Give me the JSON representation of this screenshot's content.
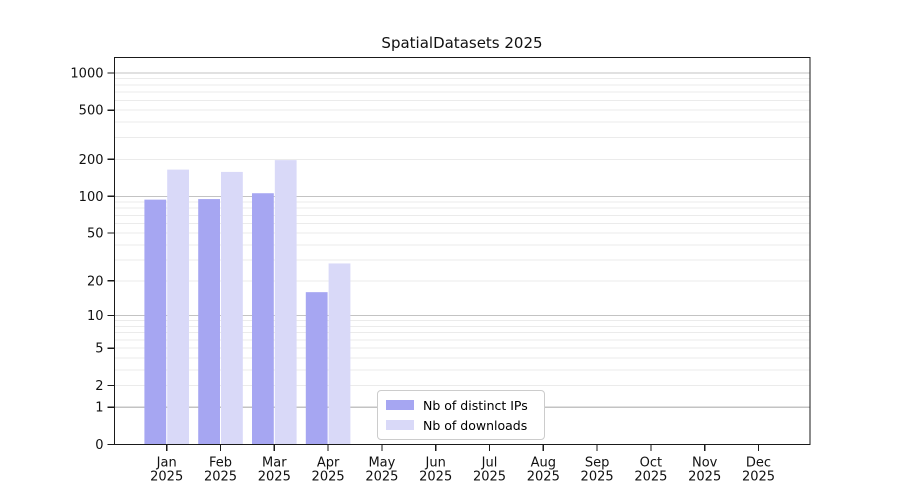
{
  "chart_data": {
    "type": "bar",
    "title": "SpatialDatasets 2025",
    "year_label": "2025",
    "categories": [
      "Jan",
      "Feb",
      "Mar",
      "Apr",
      "May",
      "Jun",
      "Jul",
      "Aug",
      "Sep",
      "Oct",
      "Nov",
      "Dec"
    ],
    "series": [
      {
        "name": "Nb of distinct IPs",
        "color": "#a6a6f2",
        "values": [
          94,
          95,
          106,
          16,
          null,
          null,
          null,
          null,
          null,
          null,
          null,
          null
        ]
      },
      {
        "name": "Nb of downloads",
        "color": "#d9d9f8",
        "values": [
          165,
          158,
          197,
          28,
          null,
          null,
          null,
          null,
          null,
          null,
          null,
          null
        ]
      }
    ],
    "yscale": "log1p",
    "yticks": [
      0,
      1,
      2,
      5,
      10,
      20,
      50,
      100,
      200,
      500,
      1000
    ],
    "major_gridline_values": [
      1,
      10,
      100,
      1000
    ],
    "ylim": [
      0,
      1320
    ],
    "grid": true,
    "legend_position": "lower center"
  },
  "colors": {
    "background": "#ffffff",
    "spine": "#1a1a1a",
    "major_grid": "#c3c3c3",
    "minor_grid": "#ebebeb",
    "tick_text": "#111111"
  }
}
